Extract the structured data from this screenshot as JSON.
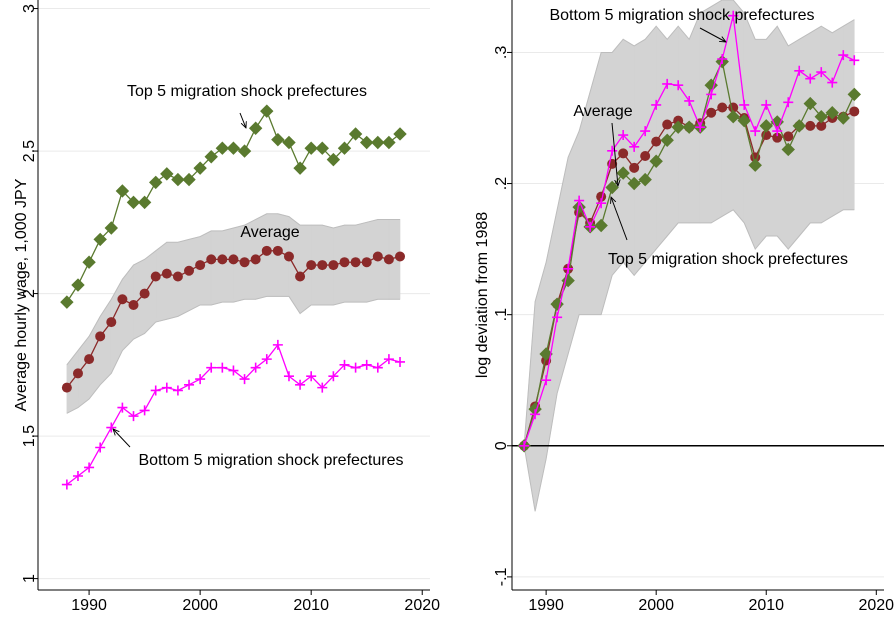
{
  "chart_data": [
    {
      "type": "line",
      "ylabel": "Average hourly wage, 1,000 JPY",
      "x": [
        1988,
        1989,
        1990,
        1991,
        1992,
        1993,
        1994,
        1995,
        1996,
        1997,
        1998,
        1999,
        2000,
        2001,
        2002,
        2003,
        2004,
        2005,
        2006,
        2007,
        2008,
        2009,
        2010,
        2011,
        2012,
        2013,
        2014,
        2015,
        2016,
        2017,
        2018
      ],
      "xlim": [
        1985.4,
        2020.7
      ],
      "xticks": [
        1990,
        2000,
        2010,
        2020
      ],
      "ylim": [
        0.96,
        3.03
      ],
      "yticks": [
        1,
        1.5,
        2,
        2.5,
        3
      ],
      "grid": true,
      "zero_line": false,
      "band": {
        "color": "#d3d3d3",
        "upper": [
          1.75,
          1.8,
          1.85,
          1.92,
          1.98,
          2.05,
          2.1,
          2.12,
          2.15,
          2.18,
          2.18,
          2.19,
          2.2,
          2.22,
          2.22,
          2.23,
          2.24,
          2.26,
          2.28,
          2.28,
          2.27,
          2.24,
          2.24,
          2.24,
          2.23,
          2.24,
          2.24,
          2.25,
          2.26,
          2.26,
          2.26
        ],
        "lower": [
          1.58,
          1.6,
          1.63,
          1.68,
          1.72,
          1.8,
          1.84,
          1.86,
          1.9,
          1.91,
          1.92,
          1.94,
          1.96,
          1.96,
          1.97,
          1.97,
          1.98,
          1.98,
          1.99,
          1.99,
          1.99,
          1.93,
          1.96,
          1.96,
          1.96,
          1.97,
          1.97,
          1.97,
          1.98,
          1.98,
          1.98
        ]
      },
      "series": [
        {
          "color": "#5a7a2f",
          "marker": "diamond",
          "values": [
            1.97,
            2.03,
            2.11,
            2.19,
            2.23,
            2.36,
            2.32,
            2.32,
            2.39,
            2.42,
            2.4,
            2.4,
            2.44,
            2.48,
            2.51,
            2.51,
            2.5,
            2.58,
            2.64,
            2.54,
            2.53,
            2.44,
            2.51,
            2.51,
            2.47,
            2.51,
            2.56,
            2.53,
            2.53,
            2.53,
            2.56
          ]
        },
        {
          "color": "#8b2a2a",
          "marker": "circle",
          "values": [
            1.67,
            1.72,
            1.77,
            1.85,
            1.9,
            1.98,
            1.96,
            2.0,
            2.06,
            2.07,
            2.06,
            2.08,
            2.1,
            2.12,
            2.12,
            2.12,
            2.11,
            2.12,
            2.15,
            2.15,
            2.13,
            2.06,
            2.1,
            2.1,
            2.1,
            2.11,
            2.11,
            2.11,
            2.13,
            2.12,
            2.13
          ]
        },
        {
          "color": "#ff00ff",
          "marker": "plus",
          "values": [
            1.33,
            1.36,
            1.39,
            1.46,
            1.53,
            1.6,
            1.57,
            1.59,
            1.66,
            1.67,
            1.66,
            1.68,
            1.7,
            1.74,
            1.74,
            1.73,
            1.7,
            1.74,
            1.77,
            1.82,
            1.71,
            1.68,
            1.71,
            1.67,
            1.71,
            1.75,
            1.74,
            1.75,
            1.74,
            1.77,
            1.76
          ]
        }
      ],
      "annotations": [
        "Top 5 migration shock prefectures",
        "Average",
        "Bottom 5 migration shock prefectures"
      ]
    },
    {
      "type": "line",
      "ylabel": "log deviation from 1988",
      "x": [
        1988,
        1989,
        1990,
        1991,
        1992,
        1993,
        1994,
        1995,
        1996,
        1997,
        1998,
        1999,
        2000,
        2001,
        2002,
        2003,
        2004,
        2005,
        2006,
        2007,
        2008,
        2009,
        2010,
        2011,
        2012,
        2013,
        2014,
        2015,
        2016,
        2017,
        2018
      ],
      "xlim": [
        1986.9,
        2020.7
      ],
      "xticks": [
        1990,
        2000,
        2010,
        2020
      ],
      "ylim": [
        -0.11,
        0.34
      ],
      "yticks": [
        {
          "value": -0.1,
          "label": "-.1"
        },
        0,
        {
          "value": 0.1,
          "label": ".1"
        },
        {
          "value": 0.2,
          "label": ".2"
        },
        {
          "value": 0.3,
          "label": ".3"
        }
      ],
      "grid": true,
      "zero_line": true,
      "band": {
        "color": "#d3d3d3",
        "upper": [
          0,
          0.11,
          0.14,
          0.18,
          0.22,
          0.24,
          0.27,
          0.3,
          0.3,
          0.31,
          0.305,
          0.31,
          0.32,
          0.31,
          0.32,
          0.31,
          0.33,
          0.335,
          0.34,
          0.34,
          0.33,
          0.31,
          0.31,
          0.32,
          0.305,
          0.31,
          0.315,
          0.32,
          0.315,
          0.32,
          0.325
        ],
        "lower": [
          0,
          -0.05,
          -0.01,
          0.04,
          0.07,
          0.1,
          0.1,
          0.1,
          0.13,
          0.14,
          0.13,
          0.14,
          0.15,
          0.16,
          0.17,
          0.17,
          0.17,
          0.17,
          0.175,
          0.18,
          0.17,
          0.15,
          0.16,
          0.16,
          0.15,
          0.16,
          0.17,
          0.17,
          0.175,
          0.18,
          0.18
        ]
      },
      "series": [
        {
          "color": "#8b2a2a",
          "marker": "circle",
          "values": [
            0,
            0.03,
            0.065,
            0.108,
            0.135,
            0.178,
            0.17,
            0.19,
            0.215,
            0.223,
            0.212,
            0.221,
            0.232,
            0.245,
            0.248,
            0.243,
            0.246,
            0.254,
            0.258,
            0.258,
            0.25,
            0.22,
            0.237,
            0.235,
            0.236,
            0.244,
            0.244,
            0.244,
            0.25,
            0.251,
            0.255
          ]
        },
        {
          "color": "#5a7a2f",
          "marker": "diamond",
          "values": [
            0,
            0.028,
            0.07,
            0.108,
            0.126,
            0.182,
            0.167,
            0.168,
            0.197,
            0.208,
            0.2,
            0.203,
            0.217,
            0.233,
            0.243,
            0.243,
            0.243,
            0.275,
            0.293,
            0.251,
            0.248,
            0.214,
            0.244,
            0.247,
            0.226,
            0.244,
            0.261,
            0.251,
            0.254,
            0.25,
            0.268
          ]
        },
        {
          "color": "#ff00ff",
          "marker": "plus",
          "values": [
            0,
            0.024,
            0.05,
            0.098,
            0.135,
            0.187,
            0.167,
            0.185,
            0.225,
            0.237,
            0.228,
            0.24,
            0.26,
            0.276,
            0.275,
            0.263,
            0.243,
            0.268,
            0.295,
            0.328,
            0.26,
            0.24,
            0.26,
            0.24,
            0.262,
            0.286,
            0.28,
            0.285,
            0.277,
            0.298,
            0.294
          ]
        }
      ],
      "annotations": [
        "Bottom 5 migration shock prefectures",
        "Average",
        "Top 5 migration shock prefectures"
      ]
    }
  ]
}
